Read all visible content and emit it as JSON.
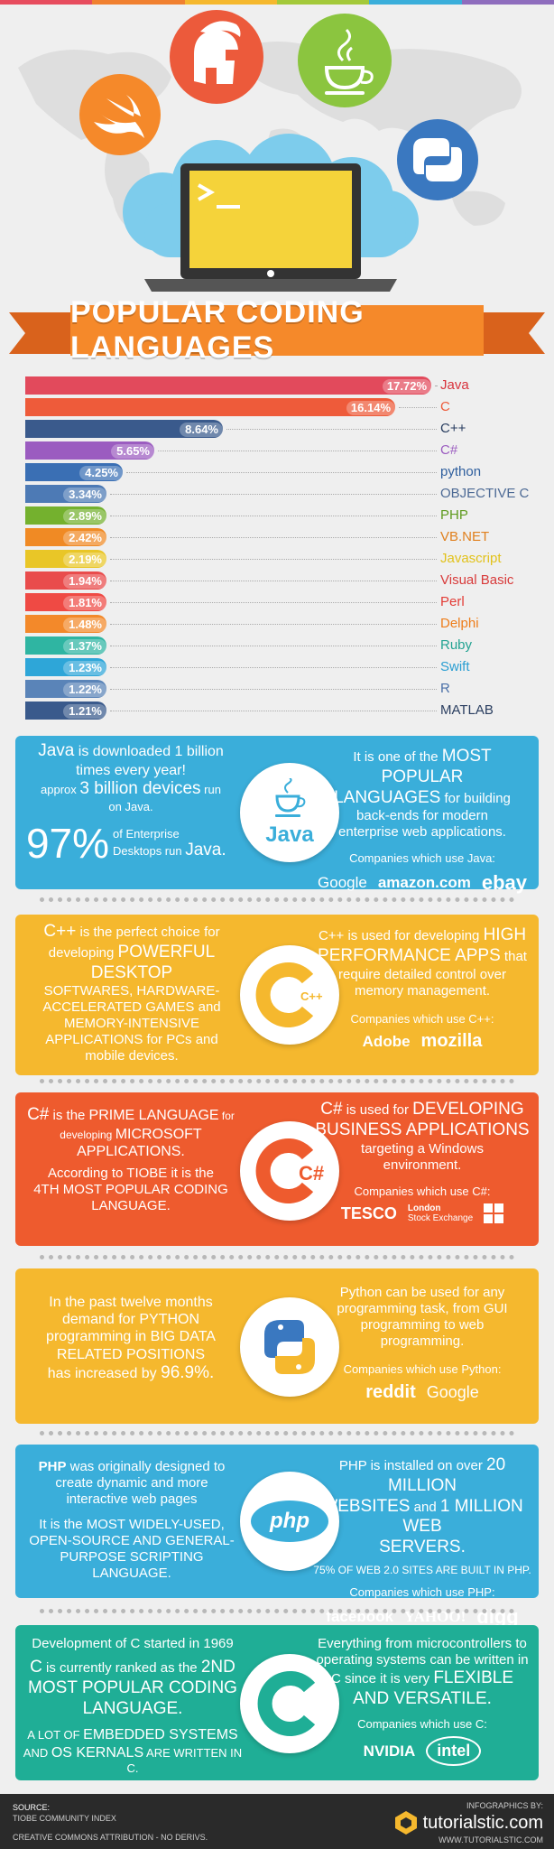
{
  "colors": {
    "strip": [
      "#e74c5e",
      "#f08030",
      "#f5b82e",
      "#a3c93a",
      "#3aaeda",
      "#8e6dbd"
    ],
    "java": "#3aaeda",
    "cpp": "#f5b82e",
    "csharp": "#ee5b2e",
    "python": "#f5b82e",
    "php": "#3aaeda",
    "c": "#1fae96"
  },
  "hero_icons": [
    "swift-icon",
    "spartan-helmet-icon",
    "java-icon",
    "python-icon",
    "terminal-icon"
  ],
  "title": "POPULAR CODING LANGUAGES",
  "chart_data": {
    "type": "bar",
    "orientation": "horizontal",
    "categories": [
      "Java",
      "C",
      "C++",
      "C#",
      "python",
      "OBJECTIVE C",
      "PHP",
      "VB.NET",
      "Javascript",
      "Visual Basic",
      "Perl",
      "Delphi",
      "Ruby",
      "Swift",
      "R",
      "MATLAB"
    ],
    "values": [
      17.72,
      16.14,
      8.64,
      5.65,
      4.25,
      3.34,
      2.89,
      2.42,
      2.19,
      1.94,
      1.81,
      1.48,
      1.37,
      1.23,
      1.22,
      1.21
    ],
    "value_labels": [
      "17.72%",
      "16.14%",
      "8.64%",
      "5.65%",
      "4.25%",
      "3.34%",
      "2.89%",
      "2.42%",
      "2.19%",
      "1.94%",
      "1.81%",
      "1.48%",
      "1.37%",
      "1.23%",
      "1.22%",
      "1.21%"
    ],
    "colors": [
      "#e24a5c",
      "#ee5b3a",
      "#3a5a8c",
      "#9b5cc0",
      "#3a6fb4",
      "#4d7ab5",
      "#74b12e",
      "#f08a24",
      "#e9c627",
      "#e94c4c",
      "#ef4a44",
      "#f3892a",
      "#2fb5a2",
      "#2ea6d8",
      "#5a84b8",
      "#3a5a8c"
    ],
    "label_colors": [
      "#d8323c",
      "#ee5b3a",
      "#2a3e60",
      "#9b5cc0",
      "#2f5f9e",
      "#4d6a95",
      "#5e9a1e",
      "#e0801e",
      "#e2c21a",
      "#d83a3a",
      "#e33c36",
      "#ee7d1a",
      "#23a392",
      "#2a9ed2",
      "#4a70a8",
      "#2a3e60"
    ],
    "xlim": [
      0,
      17.72
    ]
  },
  "java": {
    "l1a": "Java",
    "l1b": " is downloaded 1 billion",
    "l2": "times every year!",
    "l3a": "approx ",
    "l3b": "3 billion devices",
    "l3c": " run",
    "l4": "on Java.",
    "pct": "97%",
    "ent1": "of Enterprise",
    "ent2a": "Desktops run ",
    "ent2b": "Java.",
    "r1a": "It is one of the ",
    "r1b": "MOST POPULAR",
    "r2a": "LANGUAGES",
    "r2b": " for building",
    "r3": "back-ends for modern",
    "r4": "enterprise web applications.",
    "companies_label": "Companies which use Java:",
    "companies": [
      "Google",
      "amazon.com",
      "ebay"
    ],
    "logo_text": "Java"
  },
  "cpp": {
    "l1a": "C++",
    "l1b": " is the perfect choice for",
    "l2a": "developing ",
    "l2b": "POWERFUL DESKTOP",
    "l3": "SOFTWARES, HARDWARE-",
    "l4a": "ACCELERATED GAMES",
    "l4b": " and",
    "l5": "MEMORY-INTENSIVE",
    "l6a": "APPLICATIONS",
    "l6b": " for PCs and",
    "l7": "mobile devices.",
    "r1a": "C++ is used for developing ",
    "r1b": "HIGH",
    "r2a": "PERFORMANCE APPS",
    "r2b": " that",
    "r3": "require detailed control over",
    "r4": "memory management.",
    "companies_label": "Companies which use C++:",
    "companies": [
      "Adobe",
      "mozilla"
    ],
    "logo_text": "C++"
  },
  "csharp": {
    "l1a": "C#",
    "l1b": " is the ",
    "l1c": "PRIME LANGUAGE",
    "l1d": " for",
    "l2a": "developing ",
    "l2b": "MICROSOFT",
    "l3": "APPLICATIONS.",
    "l4": "According to TIOBE it is the",
    "l5": "4TH MOST POPULAR CODING",
    "l6": "LANGUAGE.",
    "r1a": "C#",
    "r1b": " is used for ",
    "r1c": "DEVELOPING",
    "r2": "BUSINESS APPLICATIONS",
    "r3": "targeting a Windows",
    "r4": "environment.",
    "companies_label": "Companies which use C#:",
    "companies": [
      "TESCO",
      "London",
      "Stock Exchange"
    ],
    "logo_text": "C#"
  },
  "python": {
    "l1": "In the past twelve months",
    "l2": "demand for PYTHON",
    "l3": "programming in BIG DATA",
    "l4": "RELATED POSITIONS",
    "l5a": "has increased by ",
    "l5b": "96.9%.",
    "r1": "Python can be used for any",
    "r2": "programming task, from GUI",
    "r3": "programming to web",
    "r4": "programming.",
    "companies_label": "Companies which use Python:",
    "companies": [
      "reddit",
      "Google"
    ]
  },
  "php": {
    "l1a": "PHP",
    "l1b": " was originally designed to",
    "l2": "create dynamic and more",
    "l3": "interactive web pages",
    "l4a": "It is the ",
    "l4b": "MOST WIDELY-USED,",
    "l5": "OPEN-SOURCE AND GENERAL-",
    "l6": "PURPOSE SCRIPTING LANGUAGE.",
    "r1a": "PHP is installed on over ",
    "r1b": "20 MILLION",
    "r2a": "WEBSITES",
    "r2b": " and ",
    "r2c": "1 MILLION WEB",
    "r3": "SERVERS.",
    "r4": "75% OF WEB 2.0 SITES ARE BUILT IN PHP.",
    "companies_label": "Companies which use PHP:",
    "companies": [
      "facebook",
      "YAHOO!",
      "digg"
    ],
    "logo_text": "php"
  },
  "c": {
    "l1": "Development of C started in 1969",
    "l2a": "C",
    "l2b": " is currently ranked as the ",
    "l2c": "2ND",
    "l3": "MOST POPULAR CODING",
    "l4": "LANGUAGE.",
    "l5a": "A LOT OF ",
    "l5b": "EMBEDDED SYSTEMS",
    "l6a": "AND ",
    "l6b": "OS KERNALS",
    "l6c": " ARE WRITTEN IN C.",
    "r1": "Everything from microcontrollers to",
    "r2": "operating systems can be written in",
    "r3a": "C since it is very ",
    "r3b": "FLEXIBLE",
    "r4": "AND VERSATILE.",
    "companies_label": "Companies which use C:",
    "companies": [
      "NVIDIA",
      "intel"
    ],
    "logo_text": "C"
  },
  "footer": {
    "source_label": "SOURCE:",
    "source": "TIOBE COMMUNITY INDEX",
    "license": "CREATIVE COMMONS ATTRIBUTION - NO DERIVS.",
    "by": "INFOGRAPHICS BY:",
    "brand": "tutorialstic.com",
    "url": "WWW.TUTORIALSTIC.COM"
  }
}
